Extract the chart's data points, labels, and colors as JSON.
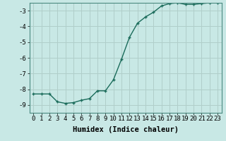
{
  "x": [
    0,
    1,
    2,
    3,
    4,
    5,
    6,
    7,
    8,
    9,
    10,
    11,
    12,
    13,
    14,
    15,
    16,
    17,
    18,
    19,
    20,
    21,
    22,
    23
  ],
  "y": [
    -8.3,
    -8.3,
    -8.3,
    -8.8,
    -8.9,
    -8.85,
    -8.7,
    -8.6,
    -8.1,
    -8.1,
    -7.4,
    -6.1,
    -4.7,
    -3.8,
    -3.4,
    -3.1,
    -2.7,
    -2.55,
    -2.5,
    -2.6,
    -2.6,
    -2.55,
    -2.5,
    -2.5
  ],
  "line_color": "#1a6b5a",
  "marker": "+",
  "marker_size": 3,
  "bg_color": "#c8e8e5",
  "grid_color": "#b0ceca",
  "xlabel": "Humidex (Indice chaleur)",
  "xlim": [
    -0.5,
    23.5
  ],
  "ylim": [
    -9.5,
    -2.5
  ],
  "yticks": [
    -9,
    -8,
    -7,
    -6,
    -5,
    -4,
    -3
  ],
  "xticks": [
    0,
    1,
    2,
    3,
    4,
    5,
    6,
    7,
    8,
    9,
    10,
    11,
    12,
    13,
    14,
    15,
    16,
    17,
    18,
    19,
    20,
    21,
    22,
    23
  ],
  "xlabel_fontsize": 7.5,
  "tick_fontsize": 6.5,
  "line_width": 1.0
}
